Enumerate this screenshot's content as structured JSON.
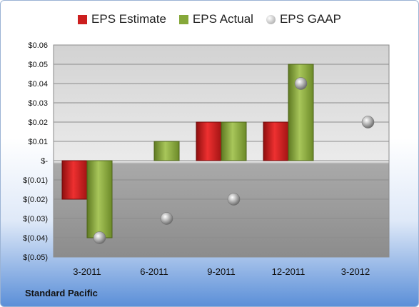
{
  "chart_data": {
    "type": "bar",
    "categories": [
      "3-2011",
      "6-2011",
      "9-2011",
      "12-2011",
      "3-2012"
    ],
    "series": [
      {
        "name": "EPS Estimate",
        "kind": "bar",
        "color": "#cc1f1f",
        "values": [
          -0.02,
          null,
          0.02,
          0.02,
          null
        ]
      },
      {
        "name": "EPS Actual",
        "kind": "bar",
        "color": "#86a83a",
        "values": [
          -0.04,
          0.01,
          0.02,
          0.05,
          null
        ]
      },
      {
        "name": "EPS GAAP",
        "kind": "point",
        "color": "#b0b0b0",
        "values": [
          -0.04,
          -0.03,
          -0.02,
          0.04,
          0.02
        ]
      }
    ],
    "yticks": [
      0.06,
      0.05,
      0.04,
      0.03,
      0.02,
      0.01,
      0,
      -0.01,
      -0.02,
      -0.03,
      -0.04,
      -0.05
    ],
    "ytick_labels": [
      "$0.06",
      "$0.05",
      "$0.04",
      "$0.03",
      "$0.02",
      "$0.01",
      "$-",
      "$(0.01)",
      "$(0.02)",
      "$(0.03)",
      "$(0.04)",
      "$(0.05)"
    ],
    "ylim": [
      -0.05,
      0.06
    ],
    "grid": true,
    "legend_position": "top",
    "title": "",
    "xlabel": "",
    "ylabel": ""
  },
  "company": "Standard Pacific",
  "legend": {
    "estimate": "EPS Estimate",
    "actual": "EPS Actual",
    "gaap": "EPS GAAP"
  }
}
